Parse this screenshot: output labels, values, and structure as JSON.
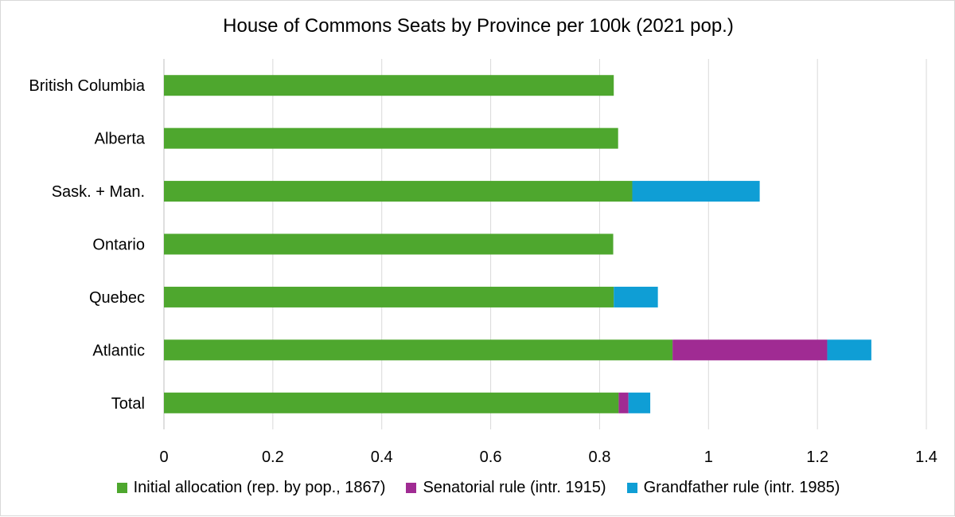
{
  "chart_data": {
    "type": "bar",
    "orientation": "horizontal",
    "stacked": true,
    "title": "House of Commons Seats by Province per 100k (2021 pop.)",
    "categories": [
      "British Columbia",
      "Alberta",
      "Sask. + Man.",
      "Ontario",
      "Quebec",
      "Atlantic",
      "Total"
    ],
    "series": [
      {
        "name": "Initial allocation (rep. by pop., 1867)",
        "color": "#4ea72e",
        "values": [
          0.826,
          0.834,
          0.86,
          0.825,
          0.826,
          0.934,
          0.835
        ]
      },
      {
        "name": "Senatorial rule (intr. 1915)",
        "color": "#a02b93",
        "values": [
          0,
          0,
          0,
          0,
          0,
          0.284,
          0.018
        ]
      },
      {
        "name": "Grandfather rule (intr. 1985)",
        "color": "#0f9ed5",
        "values": [
          0,
          0,
          0.234,
          0,
          0.081,
          0.081,
          0.04
        ]
      }
    ],
    "xlim": [
      0,
      1.4
    ],
    "xticks": [
      "0",
      "0.2",
      "0.4",
      "0.6",
      "0.8",
      "1",
      "1.2",
      "1.4"
    ],
    "grid": true,
    "legend_position": "bottom"
  }
}
